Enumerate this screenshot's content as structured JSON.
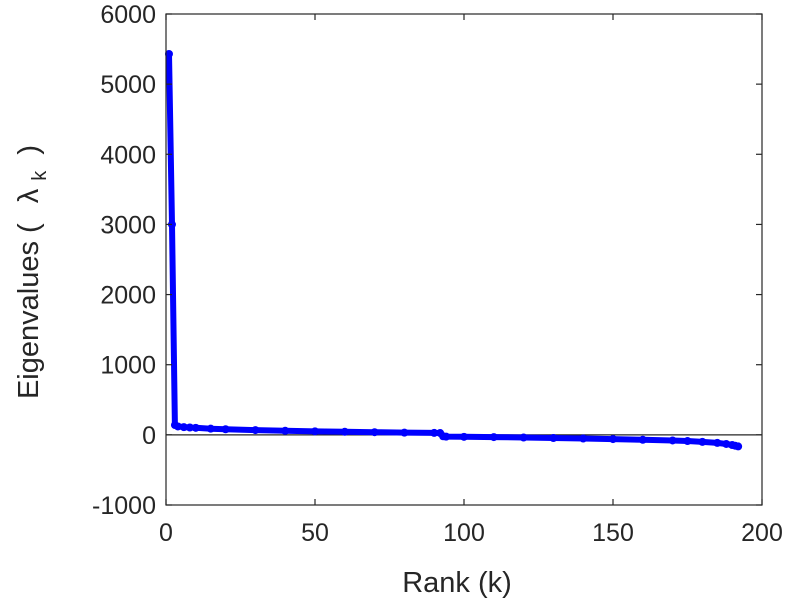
{
  "chart_data": {
    "type": "line",
    "title": "",
    "xlabel": "Rank (k)",
    "ylabel_main": "Eigenvalues (",
    "ylabel_symbol": "λ",
    "ylabel_sub": "k",
    "ylabel_close": ")",
    "xlim": [
      0,
      200
    ],
    "ylim": [
      -1000,
      6000
    ],
    "xticks": [
      0,
      50,
      100,
      150,
      200
    ],
    "xtick_labels": [
      "0",
      "50",
      "100",
      "150",
      "200"
    ],
    "yticks": [
      -1000,
      0,
      1000,
      2000,
      3000,
      4000,
      5000,
      6000
    ],
    "ytick_labels": [
      "-1000",
      "0",
      "1000",
      "2000",
      "3000",
      "4000",
      "5000",
      "6000"
    ],
    "grid": false,
    "zero_line": true,
    "series": [
      {
        "color": "#0000ff",
        "points": [
          [
            1,
            5430
          ],
          [
            2,
            3000
          ],
          [
            3,
            140
          ],
          [
            4,
            120
          ],
          [
            6,
            110
          ],
          [
            8,
            105
          ],
          [
            10,
            100
          ],
          [
            15,
            88
          ],
          [
            20,
            80
          ],
          [
            30,
            68
          ],
          [
            40,
            58
          ],
          [
            50,
            50
          ],
          [
            60,
            44
          ],
          [
            70,
            38
          ],
          [
            80,
            32
          ],
          [
            90,
            28
          ],
          [
            92,
            26
          ],
          [
            93,
            -20
          ],
          [
            94,
            -25
          ],
          [
            100,
            -28
          ],
          [
            110,
            -32
          ],
          [
            120,
            -38
          ],
          [
            130,
            -45
          ],
          [
            140,
            -52
          ],
          [
            150,
            -60
          ],
          [
            160,
            -70
          ],
          [
            170,
            -80
          ],
          [
            175,
            -88
          ],
          [
            180,
            -100
          ],
          [
            185,
            -115
          ],
          [
            188,
            -130
          ],
          [
            190,
            -145
          ],
          [
            191,
            -155
          ],
          [
            192,
            -165
          ]
        ]
      }
    ]
  }
}
